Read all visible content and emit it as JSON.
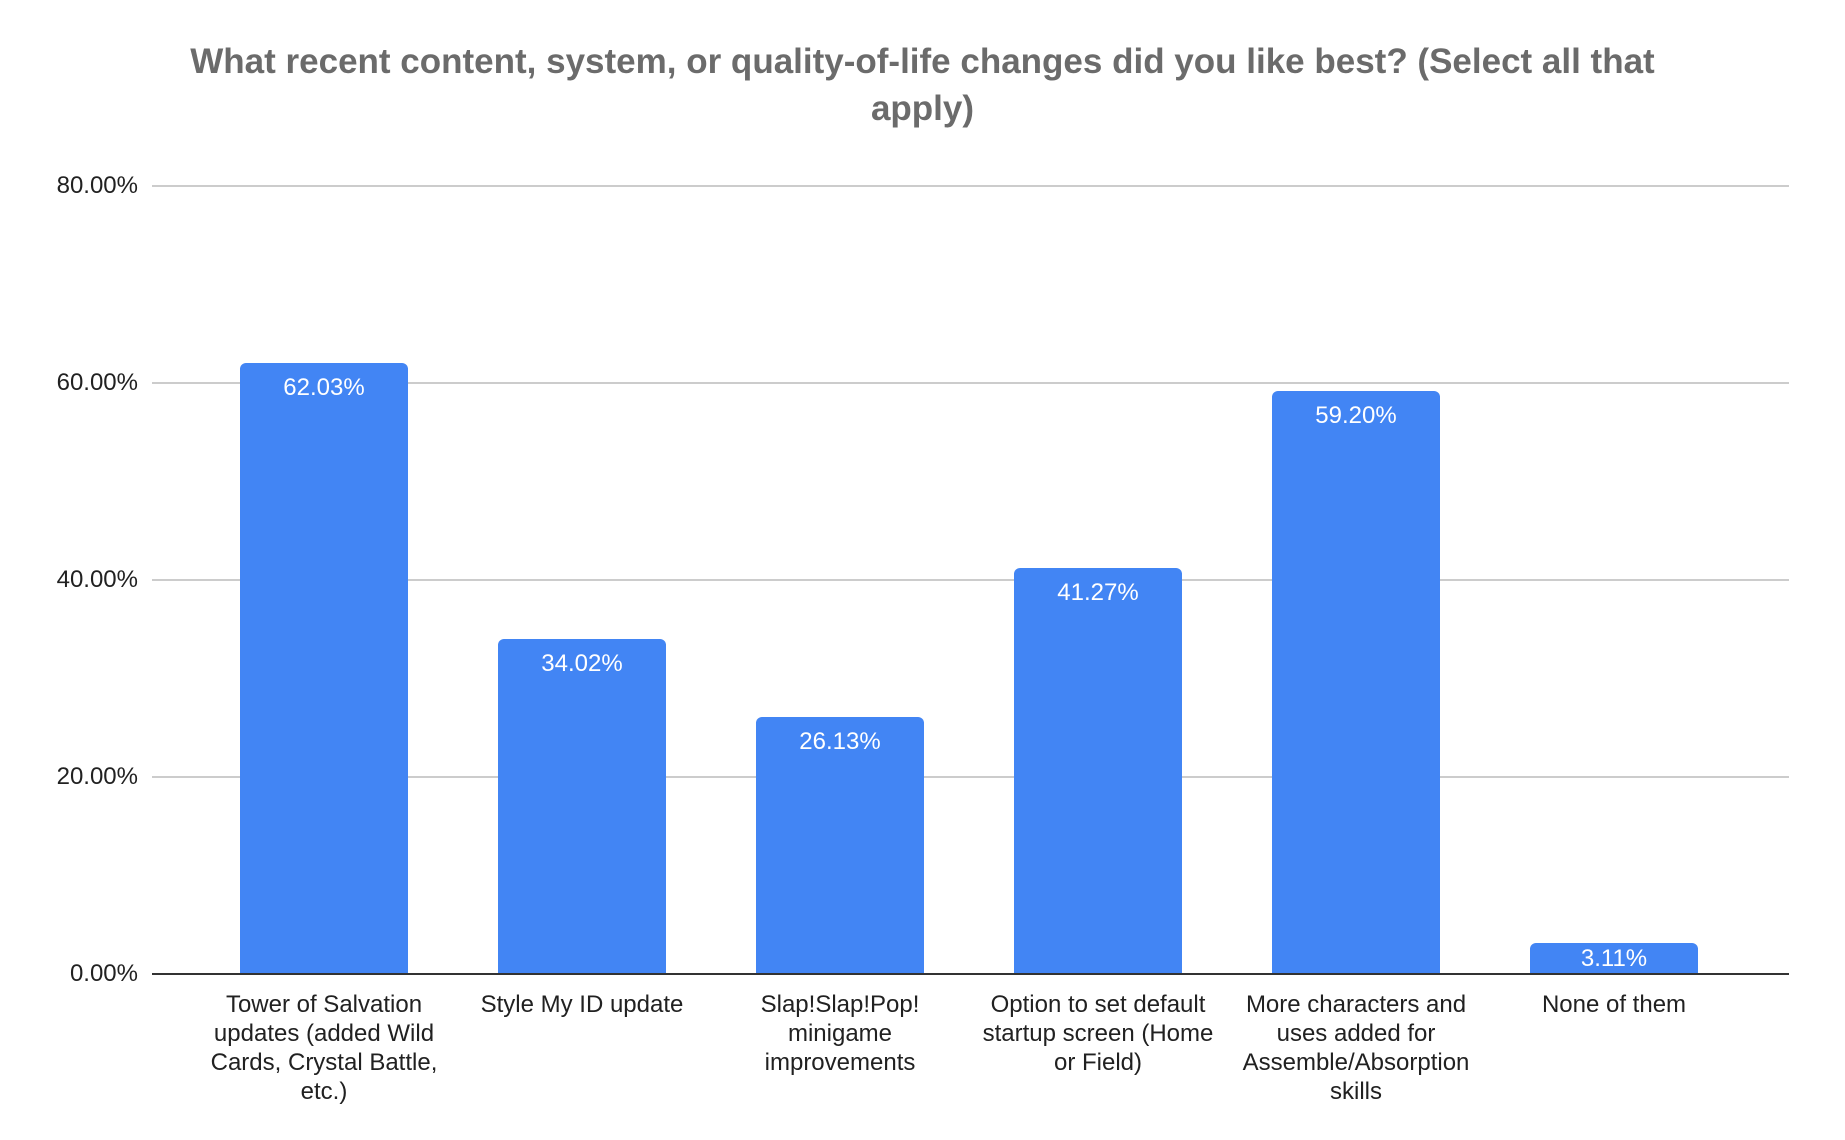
{
  "header": {
    "title_lines": [
      "What recent content, system, or quality-of-life changes did you like best? (Select all that",
      "apply)"
    ]
  },
  "chart_data": {
    "type": "bar",
    "title": "What recent content, system, or quality-of-life changes did you like best? (Select all that apply)",
    "categories": [
      "Tower of Salvation updates (added Wild Cards, Crystal Battle, etc.)",
      "Style My ID update",
      "Slap!Slap!Pop! minigame improvements",
      "Option to set default startup screen (Home or Field)",
      "More characters and uses added for Assemble/Absorption skills",
      "None of them"
    ],
    "values": [
      62.03,
      34.02,
      26.13,
      41.27,
      59.2,
      3.11
    ],
    "value_labels": [
      "62.03%",
      "34.02%",
      "26.13%",
      "41.27%",
      "59.20%",
      "3.11%"
    ],
    "xlabel": "",
    "ylabel": "",
    "ylim": [
      0,
      80
    ],
    "y_ticks": [
      {
        "value": 0,
        "label": "0.00%"
      },
      {
        "value": 20,
        "label": "20.00%"
      },
      {
        "value": 40,
        "label": "40.00%"
      },
      {
        "value": 60,
        "label": "60.00%"
      },
      {
        "value": 80,
        "label": "80.00%"
      }
    ],
    "grid": true,
    "legend": "none",
    "colors": {
      "bar": "#4285f4",
      "gridline": "#cccccc",
      "baseline": "#333333",
      "title": "#6b6b6b",
      "axis_text": "#212121",
      "value_text": "#ffffff"
    }
  }
}
